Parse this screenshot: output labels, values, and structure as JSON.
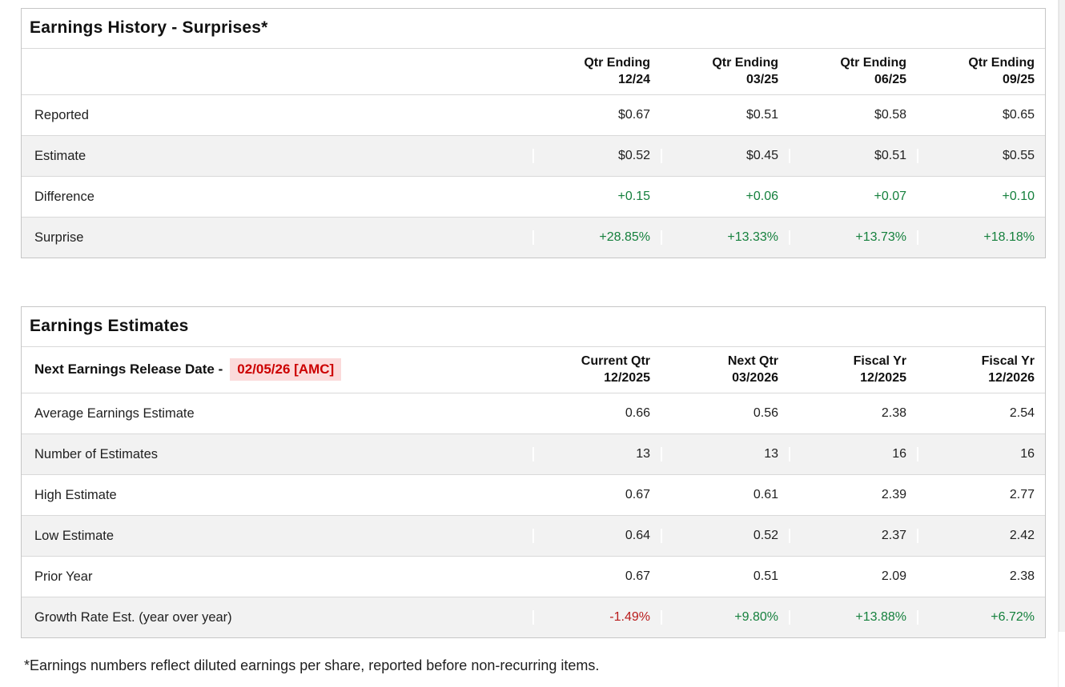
{
  "colors": {
    "positive_green": "#15803d",
    "negative_red": "#b91c1c",
    "release_date_red": "#cc0000",
    "release_date_highlight": "#fbdada",
    "alt_row_background": "#f2f2f2",
    "table_border": "#c6c6c6"
  },
  "surprises_table": {
    "title": "Earnings History - Surprises*",
    "columns": [
      {
        "line1": "Qtr Ending",
        "line2": "12/24"
      },
      {
        "line1": "Qtr Ending",
        "line2": "03/25"
      },
      {
        "line1": "Qtr Ending",
        "line2": "06/25"
      },
      {
        "line1": "Qtr Ending",
        "line2": "09/25"
      }
    ],
    "rows": [
      {
        "label": "Reported",
        "values": [
          "$0.67",
          "$0.51",
          "$0.58",
          "$0.65"
        ],
        "tone": "normal"
      },
      {
        "label": "Estimate",
        "values": [
          "$0.52",
          "$0.45",
          "$0.51",
          "$0.55"
        ],
        "tone": "normal"
      },
      {
        "label": "Difference",
        "values": [
          "+0.15",
          "+0.06",
          "+0.07",
          "+0.10"
        ],
        "tone": "positive"
      },
      {
        "label": "Surprise",
        "values": [
          "+28.85%",
          "+13.33%",
          "+13.73%",
          "+18.18%"
        ],
        "tone": "positive"
      }
    ]
  },
  "estimates_table": {
    "title": "Earnings Estimates",
    "release_label": "Next Earnings Release Date -",
    "release_date": "02/05/26 [AMC]",
    "columns": [
      {
        "line1": "Current Qtr",
        "line2": "12/2025"
      },
      {
        "line1": "Next Qtr",
        "line2": "03/2026"
      },
      {
        "line1": "Fiscal Yr",
        "line2": "12/2025"
      },
      {
        "line1": "Fiscal Yr",
        "line2": "12/2026"
      }
    ],
    "rows": [
      {
        "label": "Average Earnings Estimate",
        "values": [
          "0.66",
          "0.56",
          "2.38",
          "2.54"
        ],
        "tone": "normal"
      },
      {
        "label": "Number of Estimates",
        "values": [
          "13",
          "13",
          "16",
          "16"
        ],
        "tone": "normal"
      },
      {
        "label": "High Estimate",
        "values": [
          "0.67",
          "0.61",
          "2.39",
          "2.77"
        ],
        "tone": "normal"
      },
      {
        "label": "Low Estimate",
        "values": [
          "0.64",
          "0.52",
          "2.37",
          "2.42"
        ],
        "tone": "normal"
      },
      {
        "label": "Prior Year",
        "values": [
          "0.67",
          "0.51",
          "2.09",
          "2.38"
        ],
        "tone": "normal"
      },
      {
        "label": "Growth Rate Est. (year over year)",
        "values": [
          "-1.49%",
          "+9.80%",
          "+13.88%",
          "+6.72%"
        ],
        "tone": "mixed",
        "value_tones": [
          "negative",
          "positive",
          "positive",
          "positive"
        ]
      }
    ]
  },
  "page": {
    "footnote": "*Earnings numbers reflect diluted earnings per share, reported before non-recurring items."
  }
}
